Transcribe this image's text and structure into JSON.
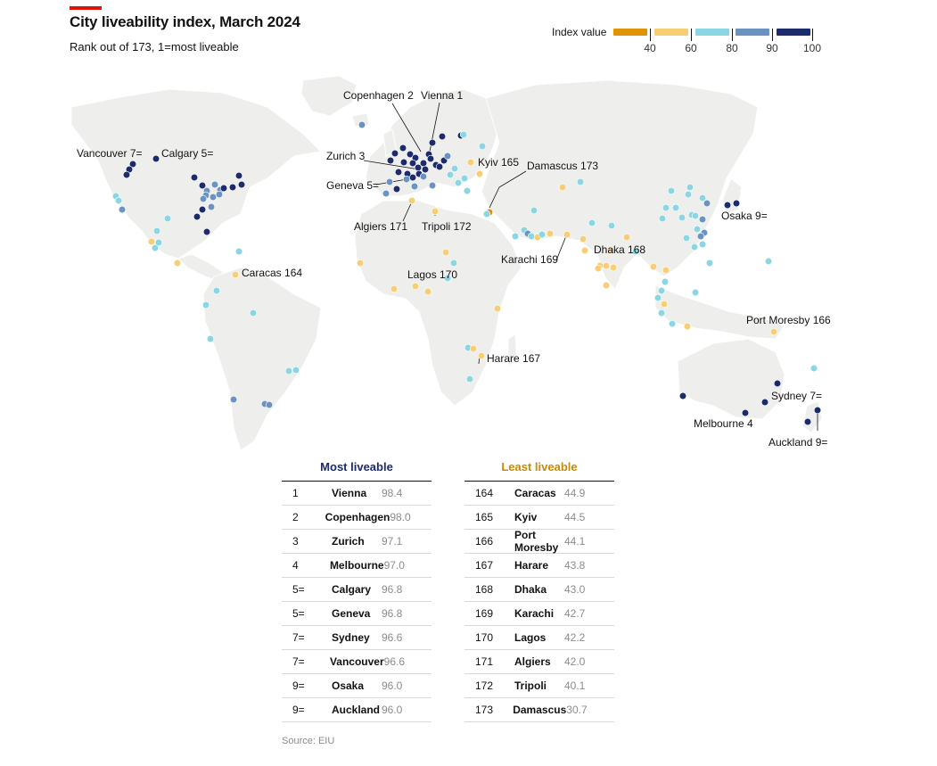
{
  "header": {
    "title": "City liveability index, March 2024",
    "subtitle": "Rank out of 173, 1=most liveable"
  },
  "legend": {
    "title": "Index value",
    "ticks": [
      "40",
      "60",
      "80",
      "90",
      "100"
    ],
    "colors": [
      "#de9404",
      "#f7ce74",
      "#8ad7e3",
      "#6b93c2",
      "#1c2b6a"
    ]
  },
  "map_labels": [
    "Copenhagen 2",
    "Vienna 1",
    "Zurich 3",
    "Geneva 5=",
    "Kyiv 165",
    "Damascus 173",
    "Algiers 171",
    "Tripoli 172",
    "Vancouver 7=",
    "Calgary 5=",
    "Caracas 164",
    "Lagos 170",
    "Karachi 169",
    "Dhaka 168",
    "Osaka 9=",
    "Port Moresby 166",
    "Harare 167",
    "Sydney 7=",
    "Melbourne 4",
    "Auckland 9="
  ],
  "most_liveable": {
    "heading": "Most liveable",
    "rows": [
      {
        "rank": "1",
        "city": "Vienna",
        "value": "98.4"
      },
      {
        "rank": "2",
        "city": "Copenhagen",
        "value": "98.0"
      },
      {
        "rank": "3",
        "city": "Zurich",
        "value": "97.1"
      },
      {
        "rank": "4",
        "city": "Melbourne",
        "value": "97.0"
      },
      {
        "rank": "5=",
        "city": "Calgary",
        "value": "96.8"
      },
      {
        "rank": "5=",
        "city": "Geneva",
        "value": "96.8"
      },
      {
        "rank": "7=",
        "city": "Sydney",
        "value": "96.6"
      },
      {
        "rank": "7=",
        "city": "Vancouver",
        "value": "96.6"
      },
      {
        "rank": "9=",
        "city": "Osaka",
        "value": "96.0"
      },
      {
        "rank": "9=",
        "city": "Auckland",
        "value": "96.0"
      }
    ]
  },
  "least_liveable": {
    "heading": "Least liveable",
    "rows": [
      {
        "rank": "164",
        "city": "Caracas",
        "value": "44.9"
      },
      {
        "rank": "165",
        "city": "Kyiv",
        "value": "44.5"
      },
      {
        "rank": "166",
        "city": "Port Moresby",
        "value": "44.1"
      },
      {
        "rank": "167",
        "city": "Harare",
        "value": "43.8"
      },
      {
        "rank": "168",
        "city": "Dhaka",
        "value": "43.0"
      },
      {
        "rank": "169",
        "city": "Karachi",
        "value": "42.7"
      },
      {
        "rank": "170",
        "city": "Lagos",
        "value": "42.2"
      },
      {
        "rank": "171",
        "city": "Algiers",
        "value": "42.0"
      },
      {
        "rank": "172",
        "city": "Tripoli",
        "value": "40.1"
      },
      {
        "rank": "173",
        "city": "Damascus",
        "value": "30.7"
      }
    ]
  },
  "source": "Source: EIU",
  "colors": {
    "land": "#eeeeec",
    "accent_red": "#e3120b",
    "most_heading": "#1c2b6a",
    "least_heading": "#c98a04"
  }
}
